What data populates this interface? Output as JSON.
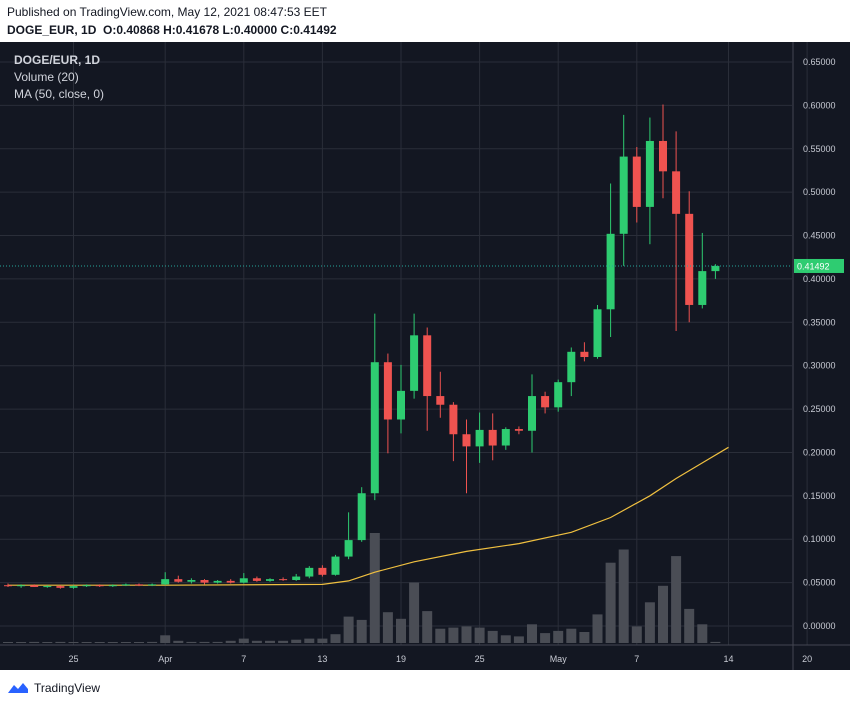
{
  "header": {
    "published": "Published on TradingView.com, May 12, 2021 08:47:53 EET",
    "symbol_line": "DOGE_EUR, 1D",
    "ohlc": {
      "O": "0.40868",
      "H": "0.41678",
      "L": "0.40000",
      "C": "0.41492"
    }
  },
  "legend": {
    "title": "DOGE/EUR, 1D",
    "volume": "Volume (20)",
    "ma": "MA (50, close, 0)"
  },
  "footer": {
    "brand": "TradingView"
  },
  "colors": {
    "bg": "#131722",
    "up": "#26a69a",
    "up_bright": "#2ecc71",
    "down": "#ef5350",
    "ma": "#f0c040",
    "volume": "#4a4d55",
    "grid": "#2a2e39"
  },
  "chart_data": {
    "type": "candlestick",
    "last_price": "0.41492",
    "x_ticks": [
      "25",
      "Apr",
      "7",
      "13",
      "19",
      "25",
      "May",
      "7",
      "14",
      "20"
    ],
    "y_ticks": [
      "0.65000",
      "0.60000",
      "0.55000",
      "0.50000",
      "0.45000",
      "0.40000",
      "0.35000",
      "0.30000",
      "0.25000",
      "0.20000",
      "0.15000",
      "0.10000",
      "0.05000",
      "0.00000"
    ],
    "ylim": [
      -0.02,
      0.66
    ],
    "series": [
      {
        "date": "2021-03-20",
        "o": 0.047,
        "h": 0.049,
        "l": 0.045,
        "c": 0.046
      },
      {
        "date": "2021-03-21",
        "o": 0.046,
        "h": 0.048,
        "l": 0.044,
        "c": 0.047
      },
      {
        "date": "2021-03-22",
        "o": 0.047,
        "h": 0.048,
        "l": 0.045,
        "c": 0.045
      },
      {
        "date": "2021-03-23",
        "o": 0.045,
        "h": 0.047,
        "l": 0.044,
        "c": 0.046
      },
      {
        "date": "2021-03-24",
        "o": 0.046,
        "h": 0.047,
        "l": 0.043,
        "c": 0.044
      },
      {
        "date": "2021-03-25",
        "o": 0.044,
        "h": 0.047,
        "l": 0.043,
        "c": 0.046
      },
      {
        "date": "2021-03-26",
        "o": 0.046,
        "h": 0.048,
        "l": 0.045,
        "c": 0.047
      },
      {
        "date": "2021-03-27",
        "o": 0.047,
        "h": 0.048,
        "l": 0.045,
        "c": 0.046
      },
      {
        "date": "2021-03-28",
        "o": 0.046,
        "h": 0.048,
        "l": 0.045,
        "c": 0.047
      },
      {
        "date": "2021-03-29",
        "o": 0.047,
        "h": 0.049,
        "l": 0.046,
        "c": 0.048
      },
      {
        "date": "2021-03-30",
        "o": 0.048,
        "h": 0.049,
        "l": 0.046,
        "c": 0.047
      },
      {
        "date": "2021-03-31",
        "o": 0.047,
        "h": 0.049,
        "l": 0.046,
        "c": 0.048
      },
      {
        "date": "2021-04-01",
        "o": 0.048,
        "h": 0.062,
        "l": 0.047,
        "c": 0.054
      },
      {
        "date": "2021-04-02",
        "o": 0.054,
        "h": 0.058,
        "l": 0.05,
        "c": 0.051
      },
      {
        "date": "2021-04-03",
        "o": 0.051,
        "h": 0.055,
        "l": 0.049,
        "c": 0.053
      },
      {
        "date": "2021-04-04",
        "o": 0.053,
        "h": 0.054,
        "l": 0.048,
        "c": 0.05
      },
      {
        "date": "2021-04-05",
        "o": 0.05,
        "h": 0.053,
        "l": 0.049,
        "c": 0.052
      },
      {
        "date": "2021-04-06",
        "o": 0.052,
        "h": 0.054,
        "l": 0.049,
        "c": 0.05
      },
      {
        "date": "2021-04-07",
        "o": 0.05,
        "h": 0.061,
        "l": 0.049,
        "c": 0.055
      },
      {
        "date": "2021-04-08",
        "o": 0.055,
        "h": 0.057,
        "l": 0.051,
        "c": 0.052
      },
      {
        "date": "2021-04-09",
        "o": 0.052,
        "h": 0.055,
        "l": 0.051,
        "c": 0.054
      },
      {
        "date": "2021-04-10",
        "o": 0.054,
        "h": 0.056,
        "l": 0.052,
        "c": 0.053
      },
      {
        "date": "2021-04-11",
        "o": 0.053,
        "h": 0.06,
        "l": 0.052,
        "c": 0.057
      },
      {
        "date": "2021-04-12",
        "o": 0.057,
        "h": 0.069,
        "l": 0.055,
        "c": 0.067
      },
      {
        "date": "2021-04-13",
        "o": 0.067,
        "h": 0.07,
        "l": 0.057,
        "c": 0.059
      },
      {
        "date": "2021-04-14",
        "o": 0.059,
        "h": 0.082,
        "l": 0.058,
        "c": 0.08
      },
      {
        "date": "2021-04-15",
        "o": 0.08,
        "h": 0.131,
        "l": 0.077,
        "c": 0.099
      },
      {
        "date": "2021-04-16",
        "o": 0.099,
        "h": 0.16,
        "l": 0.097,
        "c": 0.153
      },
      {
        "date": "2021-04-17",
        "o": 0.153,
        "h": 0.36,
        "l": 0.145,
        "c": 0.304
      },
      {
        "date": "2021-04-18",
        "o": 0.304,
        "h": 0.314,
        "l": 0.199,
        "c": 0.238
      },
      {
        "date": "2021-04-19",
        "o": 0.238,
        "h": 0.301,
        "l": 0.222,
        "c": 0.271
      },
      {
        "date": "2021-04-20",
        "o": 0.271,
        "h": 0.36,
        "l": 0.262,
        "c": 0.335
      },
      {
        "date": "2021-04-21",
        "o": 0.335,
        "h": 0.344,
        "l": 0.225,
        "c": 0.265
      },
      {
        "date": "2021-04-22",
        "o": 0.265,
        "h": 0.293,
        "l": 0.24,
        "c": 0.255
      },
      {
        "date": "2021-04-23",
        "o": 0.255,
        "h": 0.258,
        "l": 0.19,
        "c": 0.221
      },
      {
        "date": "2021-04-24",
        "o": 0.221,
        "h": 0.238,
        "l": 0.153,
        "c": 0.207
      },
      {
        "date": "2021-04-25",
        "o": 0.207,
        "h": 0.246,
        "l": 0.188,
        "c": 0.226
      },
      {
        "date": "2021-04-26",
        "o": 0.226,
        "h": 0.245,
        "l": 0.191,
        "c": 0.208
      },
      {
        "date": "2021-04-27",
        "o": 0.208,
        "h": 0.229,
        "l": 0.203,
        "c": 0.227
      },
      {
        "date": "2021-04-28",
        "o": 0.227,
        "h": 0.23,
        "l": 0.221,
        "c": 0.225
      },
      {
        "date": "2021-04-29",
        "o": 0.225,
        "h": 0.29,
        "l": 0.2,
        "c": 0.265
      },
      {
        "date": "2021-04-30",
        "o": 0.265,
        "h": 0.27,
        "l": 0.245,
        "c": 0.252
      },
      {
        "date": "2021-05-01",
        "o": 0.252,
        "h": 0.284,
        "l": 0.247,
        "c": 0.281
      },
      {
        "date": "2021-05-02",
        "o": 0.281,
        "h": 0.321,
        "l": 0.265,
        "c": 0.316
      },
      {
        "date": "2021-05-03",
        "o": 0.316,
        "h": 0.327,
        "l": 0.305,
        "c": 0.31
      },
      {
        "date": "2021-05-04",
        "o": 0.31,
        "h": 0.37,
        "l": 0.308,
        "c": 0.365
      },
      {
        "date": "2021-05-05",
        "o": 0.365,
        "h": 0.51,
        "l": 0.333,
        "c": 0.452
      },
      {
        "date": "2021-05-06",
        "o": 0.452,
        "h": 0.589,
        "l": 0.415,
        "c": 0.541
      },
      {
        "date": "2021-05-07",
        "o": 0.541,
        "h": 0.552,
        "l": 0.465,
        "c": 0.483
      },
      {
        "date": "2021-05-08",
        "o": 0.483,
        "h": 0.586,
        "l": 0.44,
        "c": 0.559
      },
      {
        "date": "2021-05-09",
        "o": 0.559,
        "h": 0.601,
        "l": 0.493,
        "c": 0.524
      },
      {
        "date": "2021-05-10",
        "o": 0.524,
        "h": 0.57,
        "l": 0.34,
        "c": 0.475
      },
      {
        "date": "2021-05-11",
        "o": 0.475,
        "h": 0.501,
        "l": 0.35,
        "c": 0.37
      },
      {
        "date": "2021-05-12",
        "o": 0.37,
        "h": 0.453,
        "l": 0.366,
        "c": 0.409
      },
      {
        "date": "2021-05-13",
        "o": 0.409,
        "h": 0.417,
        "l": 0.4,
        "c": 0.415
      }
    ],
    "volume_rel": [
      0,
      0,
      0.01,
      0,
      0.01,
      0,
      0,
      0,
      0,
      0,
      0,
      0.01,
      0.07,
      0.02,
      0.01,
      0.01,
      0.01,
      0.02,
      0.04,
      0.02,
      0.02,
      0.02,
      0.03,
      0.04,
      0.04,
      0.08,
      0.24,
      0.21,
      1.0,
      0.28,
      0.22,
      0.55,
      0.29,
      0.13,
      0.14,
      0.15,
      0.14,
      0.11,
      0.07,
      0.06,
      0.17,
      0.09,
      0.11,
      0.13,
      0.1,
      0.26,
      0.73,
      0.85,
      0.15,
      0.37,
      0.52,
      0.79,
      0.31,
      0.17,
      0.01
    ],
    "ma50": [
      [
        0,
        0.047
      ],
      [
        12,
        0.047
      ],
      [
        24,
        0.048
      ],
      [
        26,
        0.052
      ],
      [
        28,
        0.062
      ],
      [
        31,
        0.074
      ],
      [
        35,
        0.086
      ],
      [
        39,
        0.095
      ],
      [
        43,
        0.108
      ],
      [
        46,
        0.125
      ],
      [
        49,
        0.15
      ],
      [
        51,
        0.17
      ],
      [
        53,
        0.188
      ],
      [
        55,
        0.206
      ]
    ]
  }
}
